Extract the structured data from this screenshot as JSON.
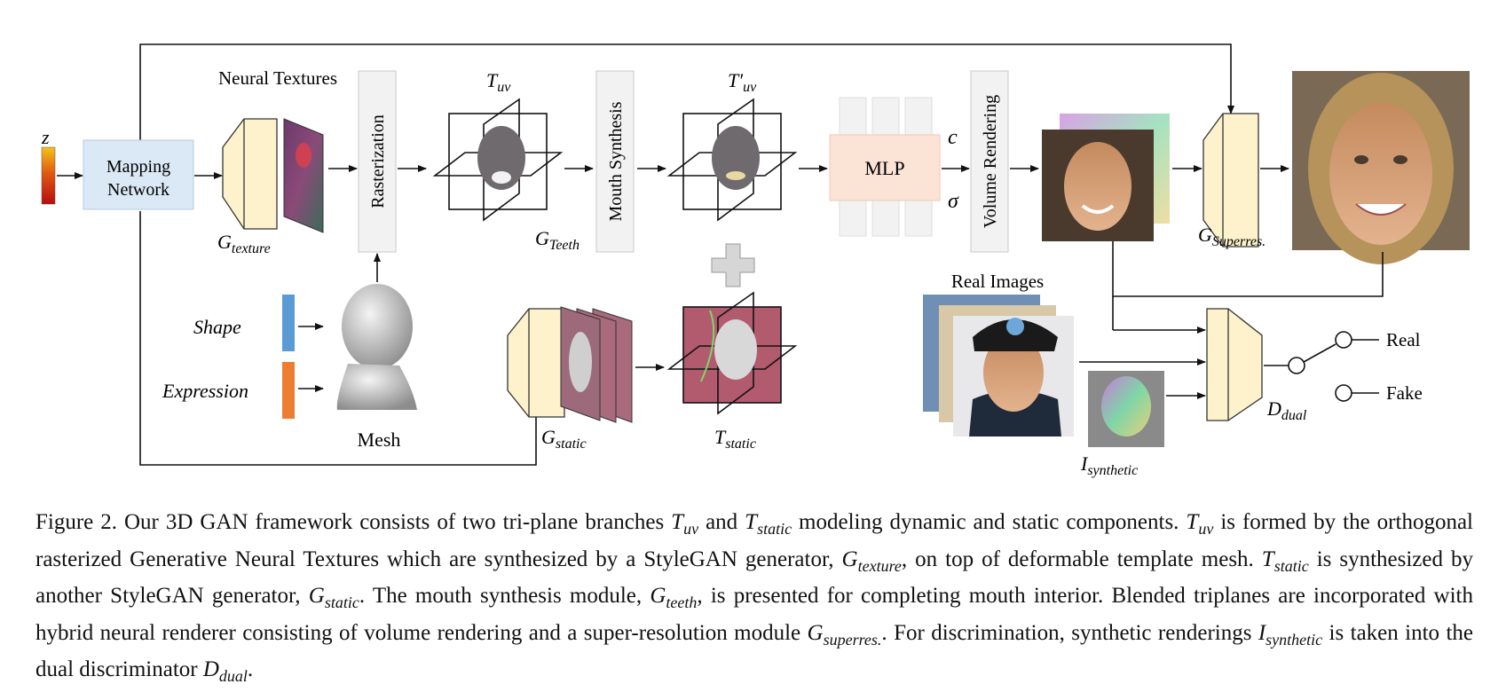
{
  "diagram": {
    "z_label": "z",
    "mapping_network": [
      "Mapping",
      "Network"
    ],
    "neural_textures": "Neural Textures",
    "rasterization": "Rasterization",
    "g_texture": {
      "base": "G",
      "sub": "texture"
    },
    "t_uv": {
      "base": "T",
      "sub": "uv"
    },
    "t_uv_prime": {
      "base": "T′",
      "sub": "uv"
    },
    "mouth_synthesis": "Mouth Synthesis",
    "g_teeth": {
      "base": "G",
      "sub": "Teeth"
    },
    "mlp": "MLP",
    "c_label": "c",
    "sigma_label": "σ",
    "volume_rendering": "Volume Rendering",
    "g_superres": {
      "base": "G",
      "sub": "Superres."
    },
    "shape": "Shape",
    "expression": "Expression",
    "mesh": "Mesh",
    "g_static": {
      "base": "G",
      "sub": "static"
    },
    "t_static": {
      "base": "T",
      "sub": "static"
    },
    "real_images": "Real Images",
    "i_synthetic": {
      "base": "I",
      "sub": "synthetic"
    },
    "d_dual": {
      "base": "D",
      "sub": "dual"
    },
    "real": "Real",
    "fake": "Fake",
    "colors": {
      "mapping": "#dbe8f5",
      "mlp": "#fbe3d6",
      "gen": "#fdf2cc",
      "shape": "#5b9bd5",
      "expression": "#ed7d31"
    }
  },
  "caption": {
    "p1": "Figure 2.  Our 3D GAN framework consists of two tri-plane branches ",
    "p2": " and ",
    "p3": " modeling dynamic and static components. ",
    "p4": " is formed by the orthogonal rasterized Generative Neural Textures which are synthesized by a StyleGAN generator, ",
    "p5": ", on top of deformable template mesh. ",
    "p6": " is synthesized by another StyleGAN generator, ",
    "p7": ". The mouth synthesis module, ",
    "p8": ", is presented for completing mouth interior. Blended triplanes are incorporated with hybrid neural renderer consisting of volume rendering and a super-resolution module ",
    "p9": ". For discrimination, synthetic renderings ",
    "p10": " is taken into the dual discriminator ",
    "p11": ".",
    "uv": "uv",
    "static": "static",
    "texture": "texture",
    "teeth": "teeth",
    "superres": "superres.",
    "synthetic": "synthetic",
    "dual": "dual",
    "T": "T",
    "G": "G",
    "I": "I",
    "D": "D"
  }
}
